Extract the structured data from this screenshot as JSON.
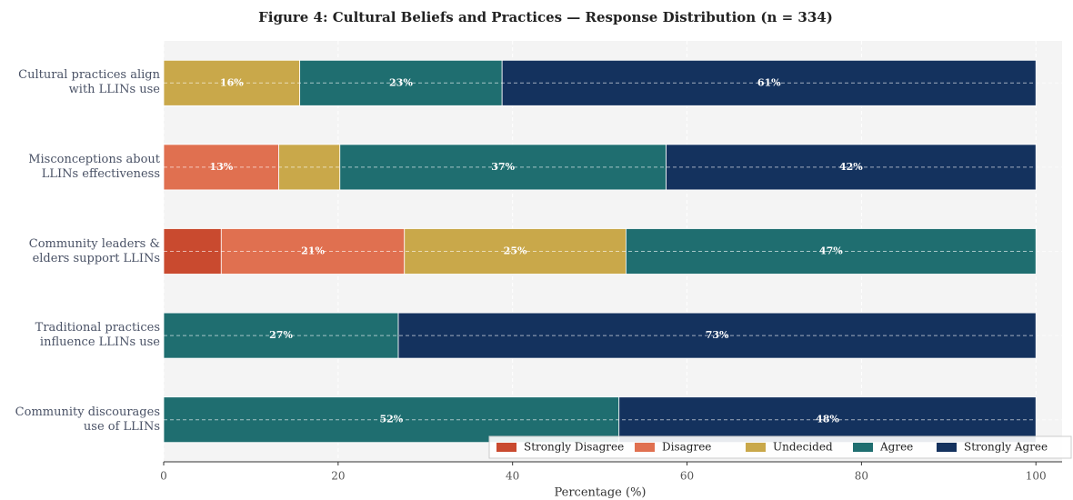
{
  "chart_data": {
    "type": "stacked-barh",
    "title": "Figure 4: Cultural Beliefs and Practices — Response Distribution (n = 334)",
    "xlabel": "Percentage (%)",
    "categories": [
      "Cultural practices align\nwith LLINs use",
      "Misconceptions about\nLLINs effectiveness",
      "Community leaders &\nelders support LLINs",
      "Traditional practices\ninfluence LLINs use",
      "Community discourages\nuse of LLINs"
    ],
    "series": [
      {
        "name": "Strongly Disagree",
        "color": "#c94a2f",
        "values": [
          0,
          0,
          6.6,
          0,
          0
        ],
        "value_labels": [
          null,
          null,
          null,
          null,
          null
        ]
      },
      {
        "name": "Disagree",
        "color": "#e07050",
        "values": [
          0,
          13.2,
          21.0,
          0,
          0
        ],
        "value_labels": [
          null,
          "13%",
          "21%",
          null,
          null
        ]
      },
      {
        "name": "Undecided",
        "color": "#c9a84a",
        "values": [
          15.6,
          7.0,
          25.4,
          0,
          0
        ],
        "value_labels": [
          "16%",
          null,
          "25%",
          null,
          null
        ]
      },
      {
        "name": "Agree",
        "color": "#1f6e70",
        "values": [
          23.2,
          37.4,
          47.0,
          26.9,
          52.2
        ],
        "value_labels": [
          "23%",
          "37%",
          "47%",
          "27%",
          "52%"
        ]
      },
      {
        "name": "Strongly Agree",
        "color": "#14325e",
        "values": [
          61.2,
          42.4,
          0,
          73.1,
          47.8
        ],
        "value_labels": [
          "61%",
          "42%",
          null,
          "73%",
          "48%"
        ]
      }
    ],
    "xlim": [
      0,
      103
    ],
    "xticks": [
      0,
      20,
      40,
      60,
      80,
      100
    ],
    "grid": true,
    "legend": "lower right"
  }
}
